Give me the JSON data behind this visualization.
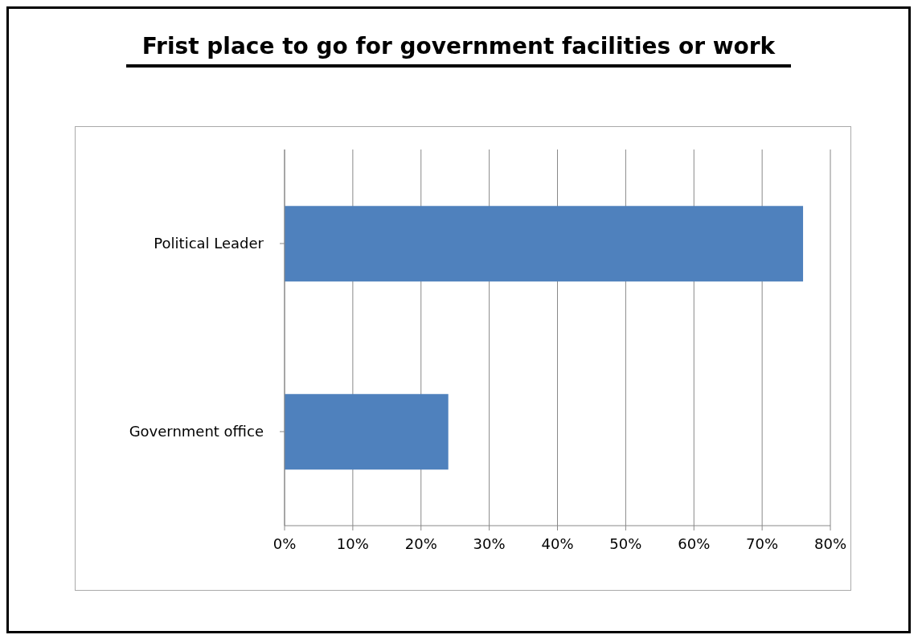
{
  "chart_data": {
    "type": "bar",
    "orientation": "horizontal",
    "title": "Frist place to go for government facilities or work",
    "categories": [
      "Political Leader",
      "Government office"
    ],
    "values": [
      76,
      24
    ],
    "color": "#4f81bd",
    "xlim": [
      0,
      80
    ],
    "xticks": [
      {
        "value": 0,
        "label": "0%"
      },
      {
        "value": 10,
        "label": "10%"
      },
      {
        "value": 20,
        "label": "20%"
      },
      {
        "value": 30,
        "label": "30%"
      },
      {
        "value": 40,
        "label": "40%"
      },
      {
        "value": 50,
        "label": "50%"
      },
      {
        "value": 60,
        "label": "60%"
      },
      {
        "value": 70,
        "label": "70%"
      },
      {
        "value": 80,
        "label": "80%"
      }
    ],
    "grid": "x",
    "legend": false
  }
}
